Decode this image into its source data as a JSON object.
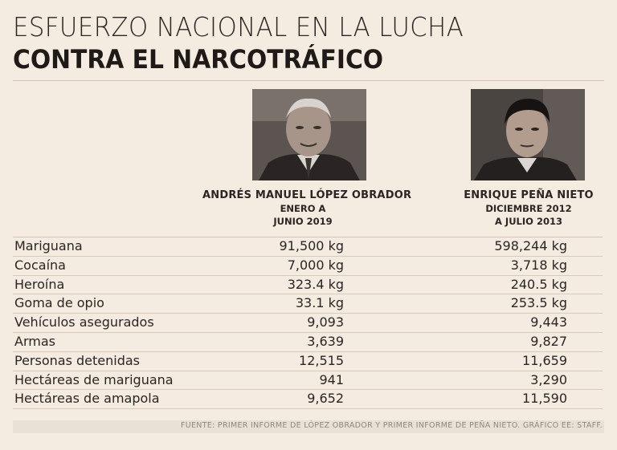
{
  "title": {
    "line1": "ESFUERZO NACIONAL EN LA LUCHA",
    "line2": "CONTRA EL NARCOTRÁFICO"
  },
  "columns": [
    {
      "name": "ANDRÉS MANUEL LÓPEZ OBRADOR",
      "period_line1": "ENERO A",
      "period_line2": "JUNIO 2019"
    },
    {
      "name": "ENRIQUE PEÑA NIETO",
      "period_line1": "DICIEMBRE 2012",
      "period_line2": "A JULIO 2013"
    }
  ],
  "rows": [
    {
      "label": "Mariguana",
      "amlo": "91,500 kg",
      "epn": "598,244 kg"
    },
    {
      "label": "Cocaína",
      "amlo": "7,000 kg",
      "epn": "3,718 kg"
    },
    {
      "label": "Heroína",
      "amlo": "323.4 kg",
      "epn": "240.5 kg"
    },
    {
      "label": "Goma de opio",
      "amlo": "33.1 kg",
      "epn": "253.5 kg"
    },
    {
      "label": "Vehículos asegurados",
      "amlo": "9,093",
      "epn": "9,443"
    },
    {
      "label": "Armas",
      "amlo": "3,639",
      "epn": "9,827"
    },
    {
      "label": "Personas detenidas",
      "amlo": "12,515",
      "epn": "11,659"
    },
    {
      "label": "Hectáreas de mariguana",
      "amlo": "941",
      "epn": "3,290"
    },
    {
      "label": "Hectáreas de amapola",
      "amlo": "9,652",
      "epn": "11,590"
    }
  ],
  "source": "FUENTE: PRIMER INFORME DE LÓPEZ OBRADOR Y PRIMER INFORME DE PEÑA NIETO. GRÁFICO EE: STAFF.",
  "colors": {
    "background": "#f4ece0",
    "text": "#2b2523",
    "rule": "#d6cbbc",
    "source": "#8f877e"
  }
}
